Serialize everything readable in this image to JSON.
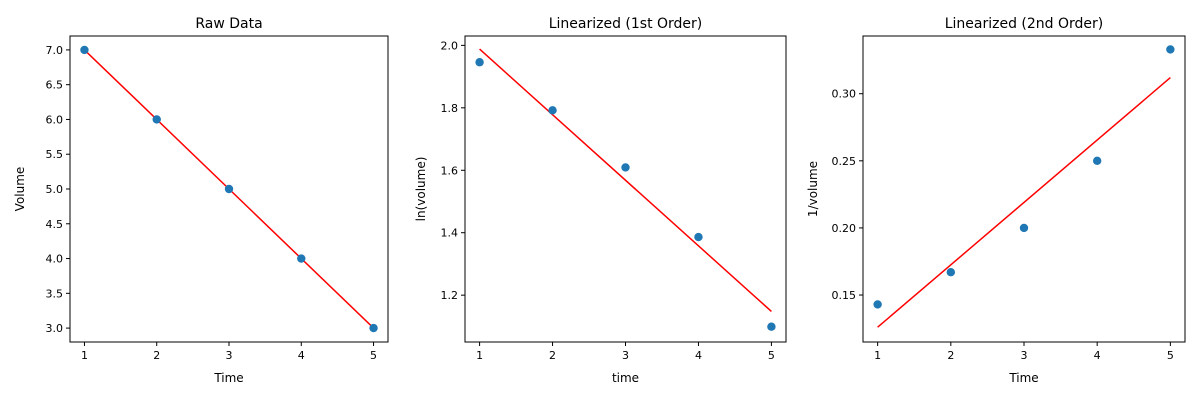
{
  "colors": {
    "points": "#1f77b4",
    "fit_line": "#ff0000",
    "axes": "#000000"
  },
  "chart_data": [
    {
      "type": "scatter",
      "title": "Raw Data",
      "xlabel": "Time",
      "ylabel": "Volume",
      "xlim": [
        0.8,
        5.2
      ],
      "ylim": [
        2.8,
        7.2
      ],
      "xticks": [
        1,
        2,
        3,
        4,
        5
      ],
      "xtick_labels": [
        "1",
        "2",
        "3",
        "4",
        "5"
      ],
      "yticks": [
        3.0,
        3.5,
        4.0,
        4.5,
        5.0,
        5.5,
        6.0,
        6.5,
        7.0
      ],
      "ytick_labels": [
        "3.0",
        "3.5",
        "4.0",
        "4.5",
        "5.0",
        "5.5",
        "6.0",
        "6.5",
        "7.0"
      ],
      "grid": false,
      "legend": false,
      "x": [
        1,
        2,
        3,
        4,
        5
      ],
      "y": [
        7,
        6,
        5,
        4,
        3
      ],
      "fit_line": {
        "x": [
          1,
          5
        ],
        "y": [
          7.0,
          3.0
        ]
      }
    },
    {
      "type": "scatter",
      "title": "Linearized (1st Order)",
      "xlabel": "time",
      "ylabel": "ln(volume)",
      "xlim": [
        0.8,
        5.2
      ],
      "ylim": [
        1.05,
        2.03
      ],
      "xticks": [
        1,
        2,
        3,
        4,
        5
      ],
      "xtick_labels": [
        "1",
        "2",
        "3",
        "4",
        "5"
      ],
      "yticks": [
        1.2,
        1.4,
        1.6,
        1.8,
        2.0
      ],
      "ytick_labels": [
        "1.2",
        "1.4",
        "1.6",
        "1.8",
        "2.0"
      ],
      "grid": false,
      "legend": false,
      "x": [
        1,
        2,
        3,
        4,
        5
      ],
      "y": [
        1.946,
        1.792,
        1.609,
        1.386,
        1.099
      ],
      "fit_line": {
        "x": [
          1,
          5
        ],
        "y": [
          1.988,
          1.148
        ]
      }
    },
    {
      "type": "scatter",
      "title": "Linearized (2nd Order)",
      "xlabel": "Time",
      "ylabel": "1/volume",
      "xlim": [
        0.8,
        5.2
      ],
      "ylim": [
        0.115,
        0.343
      ],
      "xticks": [
        1,
        2,
        3,
        4,
        5
      ],
      "xtick_labels": [
        "1",
        "2",
        "3",
        "4",
        "5"
      ],
      "yticks": [
        0.15,
        0.2,
        0.25,
        0.3
      ],
      "ytick_labels": [
        "0.15",
        "0.20",
        "0.25",
        "0.30"
      ],
      "grid": false,
      "legend": false,
      "x": [
        1,
        2,
        3,
        4,
        5
      ],
      "y": [
        0.143,
        0.167,
        0.2,
        0.25,
        0.333
      ],
      "fit_line": {
        "x": [
          1,
          5
        ],
        "y": [
          0.126,
          0.312
        ]
      }
    }
  ]
}
